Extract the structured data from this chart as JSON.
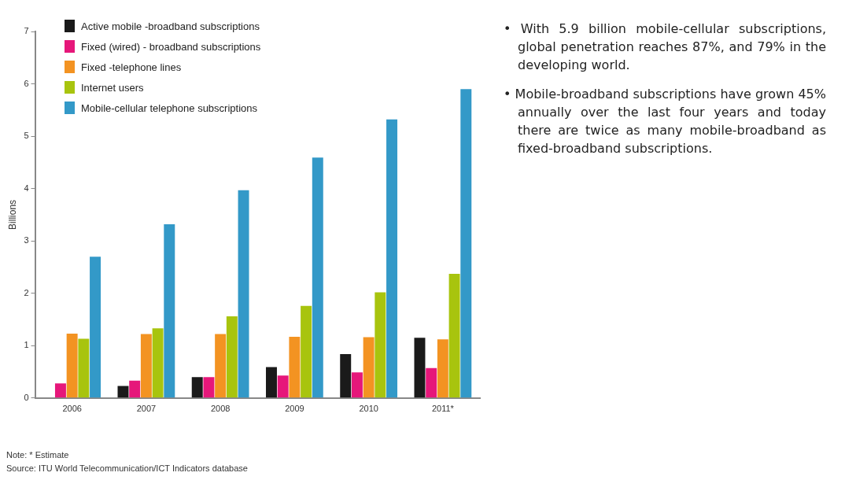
{
  "chart_data": {
    "type": "bar",
    "ylabel": "Billions",
    "categories": [
      "2006",
      "2007",
      "2008",
      "2009",
      "2010",
      "2011*"
    ],
    "series": [
      {
        "name": "Active mobile -broadband subscriptions",
        "color": "#1a1a1a",
        "values": [
          null,
          0.23,
          0.4,
          0.59,
          0.84,
          1.15
        ]
      },
      {
        "name": "Fixed (wired) - broadband subscriptions",
        "color": "#e6177a",
        "values": [
          0.28,
          0.33,
          0.4,
          0.43,
          0.49,
          0.57
        ]
      },
      {
        "name": "Fixed -telephone lines",
        "color": "#f39322",
        "values": [
          1.23,
          1.22,
          1.22,
          1.17,
          1.16,
          1.12
        ]
      },
      {
        "name": "Internet users",
        "color": "#a8c40e",
        "values": [
          1.13,
          1.33,
          1.56,
          1.76,
          2.02,
          2.37
        ]
      },
      {
        "name": "Mobile-cellular telephone subscriptions",
        "color": "#3399c8",
        "values": [
          2.7,
          3.32,
          3.97,
          4.59,
          5.32,
          5.9
        ]
      }
    ],
    "ylim": [
      0,
      7
    ],
    "yticks": [
      0,
      1,
      2,
      3,
      4,
      5,
      6,
      7
    ],
    "grid": false,
    "legend": "top left",
    "annotations": [
      "• With 5.9 billion mobile-cellular subscriptions, global penetration reaches 87%, and 79% in the developing world.",
      "• Mobile-broadband subscriptions have grown 45% annually over the last four years and today there are twice as many mobile-broadband as fixed-broadband subscriptions.",
      "Note: * Estimate",
      "Source: ITU World Telecommunication/ICT Indicators database"
    ]
  }
}
